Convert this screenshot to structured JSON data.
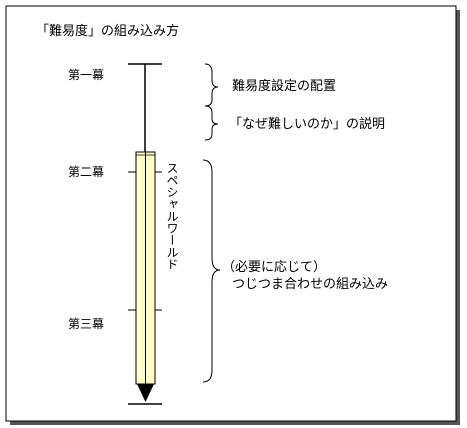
{
  "title": "「難易度」の組み込み方",
  "acts": {
    "act1": "第一幕",
    "act2": "第二幕",
    "act3": "第三幕"
  },
  "special_world": "スペシャルワールド",
  "annotations": {
    "difficulty_setting": "難易度設定の配置",
    "why_difficult": "「なぜ難しいのか」の説明",
    "if_needed": "（必要に応じて）",
    "consistency": "つじつま合わせの組み込み"
  },
  "colors": {
    "bar_fill": "#ffffc8",
    "bar_stroke": "#000000",
    "frame": "#000000",
    "frame_shadow": "#555555"
  }
}
